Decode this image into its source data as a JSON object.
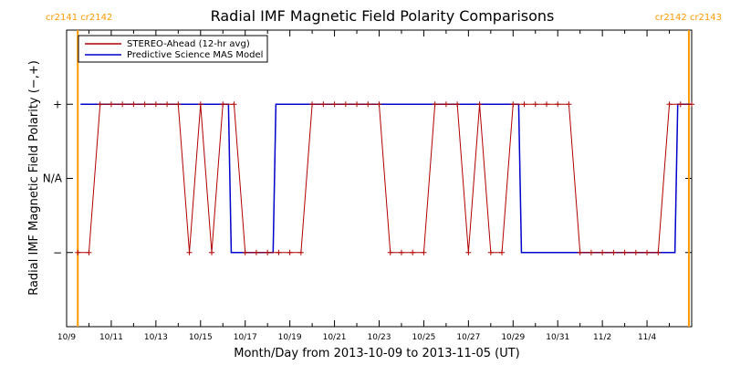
{
  "colors": {
    "stereo": "#b00000",
    "model": "#0000cc",
    "rotation": "#ff9900",
    "axis": "#000000"
  },
  "carrington": {
    "left_label": "cr2141 cr2142",
    "right_label": "cr2142 cr2143",
    "boundaries": [
      "2013-10-09T12:00",
      "2013-11-05T21:00"
    ]
  },
  "chart_data": {
    "type": "line",
    "title": "Radial IMF Magnetic Field Polarity Comparisons",
    "xlabel": "Month/Day from 2013-10-09 to 2013-11-05 (UT)",
    "ylabel": "Radial IMF Magnetic Field Polarity (−,+)",
    "xlim": [
      "2013-10-09T00:00",
      "2013-11-06T00:00"
    ],
    "ylim": [
      -2,
      2
    ],
    "x_tick_labels": [
      "10/9",
      "10/11",
      "10/13",
      "10/15",
      "10/17",
      "10/19",
      "10/21",
      "10/23",
      "10/25",
      "10/27",
      "10/29",
      "10/31",
      "11/2",
      "11/4"
    ],
    "y_tick_labels": [
      {
        "value": 1,
        "label": "+"
      },
      {
        "value": 0,
        "label": "N/A"
      },
      {
        "value": -1,
        "label": "−"
      }
    ],
    "legend_position": "top-left",
    "series": [
      {
        "name": "STEREO-Ahead (12-hr avg)",
        "values": [
          [
            "2013-10-09T12:00",
            -1
          ],
          [
            "2013-10-10T00:00",
            -1
          ],
          [
            "2013-10-10T12:00",
            1
          ],
          [
            "2013-10-11T00:00",
            1
          ],
          [
            "2013-10-11T12:00",
            1
          ],
          [
            "2013-10-12T00:00",
            1
          ],
          [
            "2013-10-12T12:00",
            1
          ],
          [
            "2013-10-13T00:00",
            1
          ],
          [
            "2013-10-13T12:00",
            1
          ],
          [
            "2013-10-14T00:00",
            1
          ],
          [
            "2013-10-14T12:00",
            -1
          ],
          [
            "2013-10-15T00:00",
            1
          ],
          [
            "2013-10-15T12:00",
            -1
          ],
          [
            "2013-10-16T00:00",
            1
          ],
          [
            "2013-10-16T12:00",
            1
          ],
          [
            "2013-10-17T00:00",
            -1
          ],
          [
            "2013-10-17T12:00",
            -1
          ],
          [
            "2013-10-18T00:00",
            -1
          ],
          [
            "2013-10-18T12:00",
            -1
          ],
          [
            "2013-10-19T00:00",
            -1
          ],
          [
            "2013-10-19T12:00",
            -1
          ],
          [
            "2013-10-20T00:00",
            1
          ],
          [
            "2013-10-20T12:00",
            1
          ],
          [
            "2013-10-21T00:00",
            1
          ],
          [
            "2013-10-21T12:00",
            1
          ],
          [
            "2013-10-22T00:00",
            1
          ],
          [
            "2013-10-22T12:00",
            1
          ],
          [
            "2013-10-23T00:00",
            1
          ],
          [
            "2013-10-23T12:00",
            -1
          ],
          [
            "2013-10-24T00:00",
            -1
          ],
          [
            "2013-10-24T12:00",
            -1
          ],
          [
            "2013-10-25T00:00",
            -1
          ],
          [
            "2013-10-25T12:00",
            1
          ],
          [
            "2013-10-26T00:00",
            1
          ],
          [
            "2013-10-26T12:00",
            1
          ],
          [
            "2013-10-27T00:00",
            -1
          ],
          [
            "2013-10-27T12:00",
            1
          ],
          [
            "2013-10-28T00:00",
            -1
          ],
          [
            "2013-10-28T12:00",
            -1
          ],
          [
            "2013-10-29T00:00",
            1
          ],
          [
            "2013-10-29T12:00",
            1
          ],
          [
            "2013-10-30T00:00",
            1
          ],
          [
            "2013-10-30T12:00",
            1
          ],
          [
            "2013-10-31T00:00",
            1
          ],
          [
            "2013-10-31T12:00",
            1
          ],
          [
            "2013-11-01T00:00",
            -1
          ],
          [
            "2013-11-01T12:00",
            -1
          ],
          [
            "2013-11-02T00:00",
            -1
          ],
          [
            "2013-11-02T12:00",
            -1
          ],
          [
            "2013-11-03T00:00",
            -1
          ],
          [
            "2013-11-03T12:00",
            -1
          ],
          [
            "2013-11-04T00:00",
            -1
          ],
          [
            "2013-11-04T12:00",
            -1
          ],
          [
            "2013-11-05T00:00",
            1
          ],
          [
            "2013-11-05T12:00",
            1
          ],
          [
            "2013-11-06T00:00",
            1
          ]
        ]
      },
      {
        "name": "Predictive Science MAS Model",
        "values": [
          [
            "2013-10-09T15:00",
            1
          ],
          [
            "2013-10-16T06:00",
            1
          ],
          [
            "2013-10-16T09:00",
            -1
          ],
          [
            "2013-10-18T06:00",
            -1
          ],
          [
            "2013-10-18T09:00",
            1
          ],
          [
            "2013-10-29T06:00",
            1
          ],
          [
            "2013-10-29T09:00",
            -1
          ],
          [
            "2013-11-05T06:00",
            -1
          ],
          [
            "2013-11-05T09:00",
            1
          ],
          [
            "2013-11-06T00:00",
            1
          ]
        ]
      }
    ]
  }
}
